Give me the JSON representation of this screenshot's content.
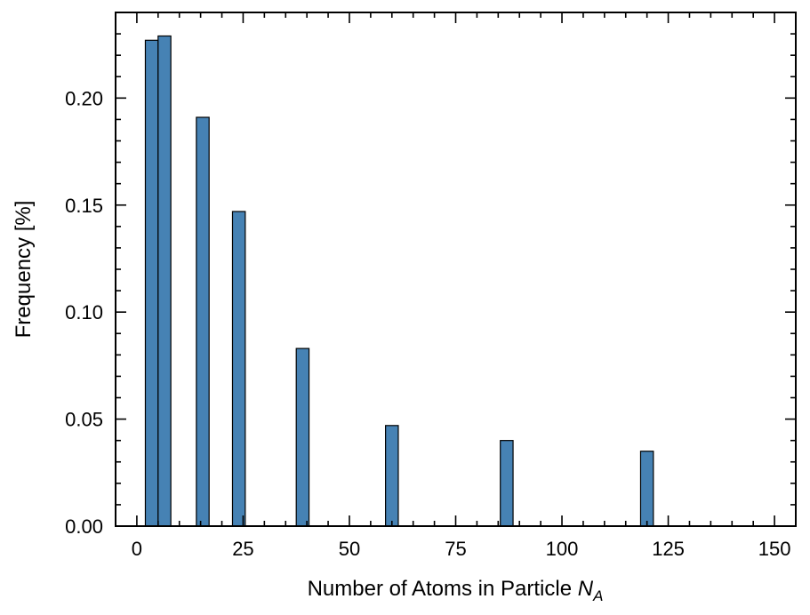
{
  "chart_data": {
    "type": "bar",
    "xlabel": "Number of Atoms in Particle",
    "xlabel_symbol": "N",
    "xlabel_subscript": "A",
    "ylabel": "Frequency [%]",
    "xlim": [
      -5,
      155
    ],
    "ylim": [
      0,
      0.24
    ],
    "grid": false,
    "bar_width": 3,
    "x_ticks": [
      0,
      25,
      50,
      75,
      100,
      125,
      150
    ],
    "x_tick_labels": [
      "0",
      "25",
      "50",
      "75",
      "100",
      "125",
      "150"
    ],
    "x_minor_step": 5,
    "y_ticks": [
      0.0,
      0.05,
      0.1,
      0.15,
      0.2
    ],
    "y_tick_labels": [
      "0.00",
      "0.05",
      "0.10",
      "0.15",
      "0.20"
    ],
    "y_minor_step": 0.01,
    "color": "#4682b4",
    "bars": [
      {
        "x": 3.5,
        "value": 0.227
      },
      {
        "x": 6.5,
        "value": 0.229
      },
      {
        "x": 15.5,
        "value": 0.191
      },
      {
        "x": 24,
        "value": 0.147
      },
      {
        "x": 39,
        "value": 0.083
      },
      {
        "x": 60,
        "value": 0.047
      },
      {
        "x": 87,
        "value": 0.04
      },
      {
        "x": 120,
        "value": 0.035
      }
    ]
  }
}
